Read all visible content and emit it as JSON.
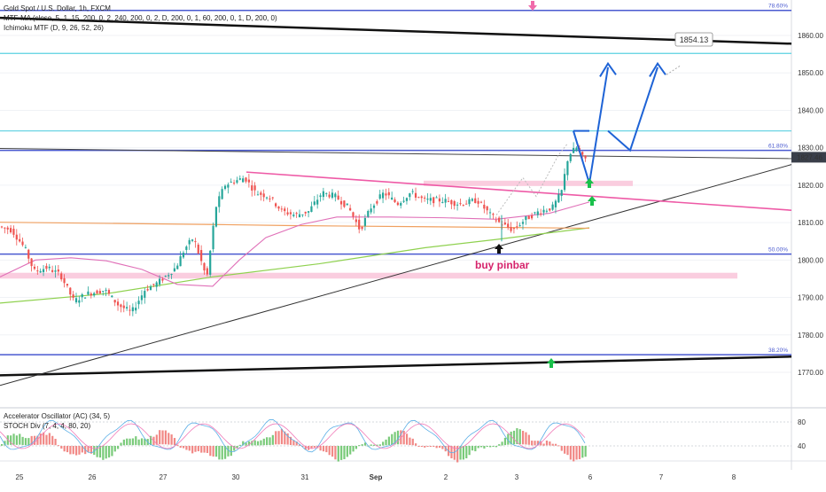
{
  "legend": {
    "line1": "Gold Spot / U.S. Dollar, 1h, FXCM",
    "line2": "MTF-MA (close, 5, 1, 15, 200, 0, 2, 240, 200, 0, 2, D, 200, 0, 1, 60, 200, 0, 1, D, 200, 0)",
    "line3": "Ichimoku MTF (D, 9, 26, 52, 26)",
    "osc1": "Accelerator Oscillator (AC) (34, 5)",
    "osc2": "STOCH Div (7, 4, 4, 80, 20)"
  },
  "chart_data": {
    "type": "candlestick",
    "symbol": "Gold Spot / U.S. Dollar",
    "timeframe": "1h",
    "source": "FXCM",
    "ylim": [
      1764,
      1867
    ],
    "price_ticks": [
      1770,
      1780,
      1790,
      1800,
      1810,
      1820,
      1830,
      1840,
      1850,
      1860
    ],
    "x_ticks": [
      "25",
      "26",
      "27",
      "30",
      "31",
      "Sep",
      "2",
      "3",
      "6",
      "7",
      "8"
    ],
    "last_price": "1827.46",
    "target_label": "1854.13",
    "annotation": "buy pinbar",
    "fib_levels": [
      {
        "label": "78.60%",
        "price": 1866.7
      },
      {
        "label": "61.80%",
        "price": 1829.3
      },
      {
        "label": "50.00%",
        "price": 1801.6
      },
      {
        "label": "38.20%",
        "price": 1774.7
      }
    ],
    "horizontal_levels": [
      1855.2,
      1834.5
    ],
    "oscillator_ticks": [
      80,
      40
    ],
    "colors": {
      "up": "#26a69a",
      "down": "#ef5350",
      "fib": "#4a5ad0",
      "trend_pink": "#ee5aa6",
      "forecast": "#1e63d6",
      "ma_green": "#8fd14f",
      "ma_orange": "#f0a060",
      "stoch_k": "#5aaee6",
      "stoch_d": "#f07ab8"
    }
  }
}
